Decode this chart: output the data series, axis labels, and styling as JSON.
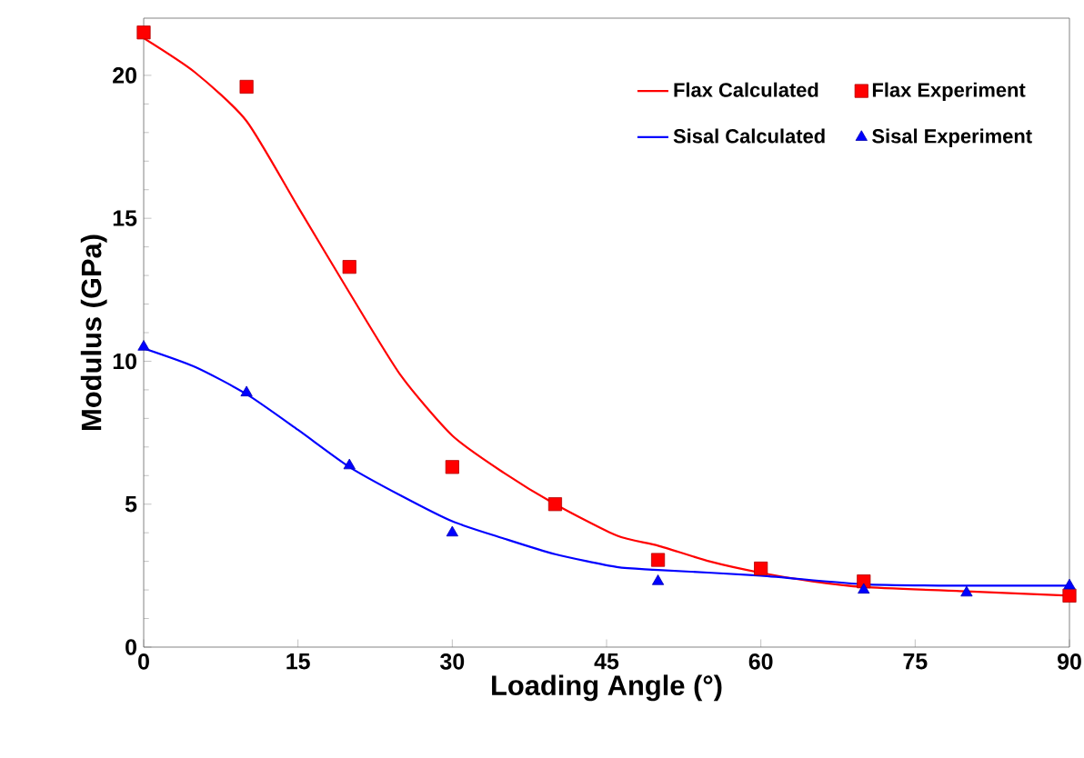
{
  "chart_data": {
    "type": "line",
    "xlabel": "Loading Angle (°)",
    "ylabel": "Modulus (GPa)",
    "xlim": [
      0,
      90
    ],
    "ylim": [
      0,
      22
    ],
    "xticks": [
      0,
      15,
      30,
      45,
      60,
      75,
      90
    ],
    "yticks": [
      0,
      5,
      10,
      15,
      20
    ],
    "grid": false,
    "legend": "top right",
    "series": [
      {
        "name": "Flax Calculated",
        "color": "#ff0000",
        "marker": "none",
        "line_style": "solid",
        "x": [
          0,
          5,
          10,
          15,
          20,
          25,
          30,
          35,
          40,
          46,
          50,
          55,
          60,
          65,
          70,
          80,
          90
        ],
        "values": [
          21.3,
          20.1,
          18.4,
          15.4,
          12.4,
          9.5,
          7.4,
          6.1,
          5.0,
          3.9,
          3.55,
          3.0,
          2.6,
          2.3,
          2.1,
          1.95,
          1.8
        ]
      },
      {
        "name": "Flax Experiment",
        "type": "scatter",
        "color": "#ff0000",
        "marker": "square",
        "x": [
          0,
          10,
          20,
          30,
          40,
          50,
          60,
          70,
          90
        ],
        "values": [
          21.5,
          19.6,
          13.3,
          6.3,
          5.0,
          3.05,
          2.75,
          2.3,
          1.8
        ]
      },
      {
        "name": "Sisal Calculated",
        "color": "#0000ff",
        "marker": "none",
        "line_style": "solid",
        "x": [
          0,
          5,
          10,
          15,
          20,
          25,
          30,
          35,
          40,
          46,
          50,
          60,
          70,
          80,
          90
        ],
        "values": [
          10.45,
          9.8,
          8.85,
          7.6,
          6.3,
          5.3,
          4.4,
          3.8,
          3.25,
          2.8,
          2.7,
          2.5,
          2.2,
          2.15,
          2.15
        ]
      },
      {
        "name": "Sisal Experiment",
        "type": "scatter",
        "color": "#0000ff",
        "marker": "triangle",
        "x": [
          0,
          10,
          20,
          30,
          50,
          70,
          80,
          90
        ],
        "values": [
          10.5,
          8.9,
          6.35,
          4.0,
          2.3,
          2.0,
          1.9,
          2.15
        ]
      }
    ]
  }
}
